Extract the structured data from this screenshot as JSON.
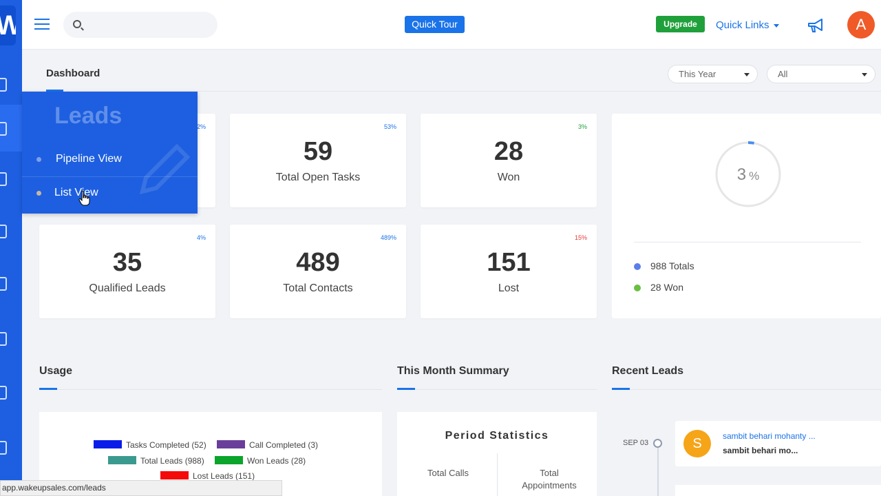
{
  "topbar": {
    "search_placeholder": "",
    "quick_tour": "Quick Tour",
    "upgrade": "Upgrade",
    "quick_links": "Quick Links",
    "avatar_initial": "A"
  },
  "sidebar": {
    "logo": "W"
  },
  "page": {
    "title": "Dashboard",
    "period_filter": "This Year",
    "scope_filter": "All"
  },
  "flyout": {
    "title": "Leads",
    "items": [
      {
        "label": "Pipeline View"
      },
      {
        "label": "List View"
      }
    ]
  },
  "cards": [
    {
      "pct": "2%",
      "value": "",
      "label": "",
      "pct_color": "#1a73e8"
    },
    {
      "pct": "53%",
      "value": "59",
      "label": "Total Open Tasks",
      "pct_color": "#1a73e8"
    },
    {
      "pct": "3%",
      "value": "28",
      "label": "Won",
      "pct_color": "#1fa03b"
    },
    {
      "pct": "4%",
      "value": "35",
      "label": "Qualified Leads",
      "pct_color": "#1a73e8"
    },
    {
      "pct": "489%",
      "value": "489",
      "label": "Total Contacts",
      "pct_color": "#1a73e8"
    },
    {
      "pct": "15%",
      "value": "151",
      "label": "Lost",
      "pct_color": "#e53935"
    }
  ],
  "gauge": {
    "value": "3",
    "unit": "%",
    "fraction": 0.03,
    "legend": [
      {
        "label": "988 Totals",
        "color": "#5b7fe8"
      },
      {
        "label": "28 Won",
        "color": "#6abf40"
      }
    ]
  },
  "sections": {
    "usage": "Usage",
    "summary": "This Month Summary",
    "recent": "Recent Leads"
  },
  "usage_legend": [
    {
      "label": "Tasks Completed (52)",
      "color": "#0a1de8"
    },
    {
      "label": "Call Completed (3)",
      "color": "#6a3d9a"
    },
    {
      "label": "Total Leads (988)",
      "color": "#3a9a8f"
    },
    {
      "label": "Won Leads (28)",
      "color": "#0aa52a"
    },
    {
      "label": "Lost Leads (151)",
      "color": "#f50a0a"
    }
  ],
  "period_stats": {
    "title": "Period Statistics",
    "col1": "Total Calls",
    "col2_line1": "Total",
    "col2_line2": "Appointments"
  },
  "recent_leads": {
    "date": "SEP 03",
    "items": [
      {
        "initial": "S",
        "name": "sambit behari mohanty ...",
        "sub": "sambit behari mo..."
      }
    ]
  },
  "statusbar": {
    "url": "app.wakeupsales.com/leads"
  }
}
